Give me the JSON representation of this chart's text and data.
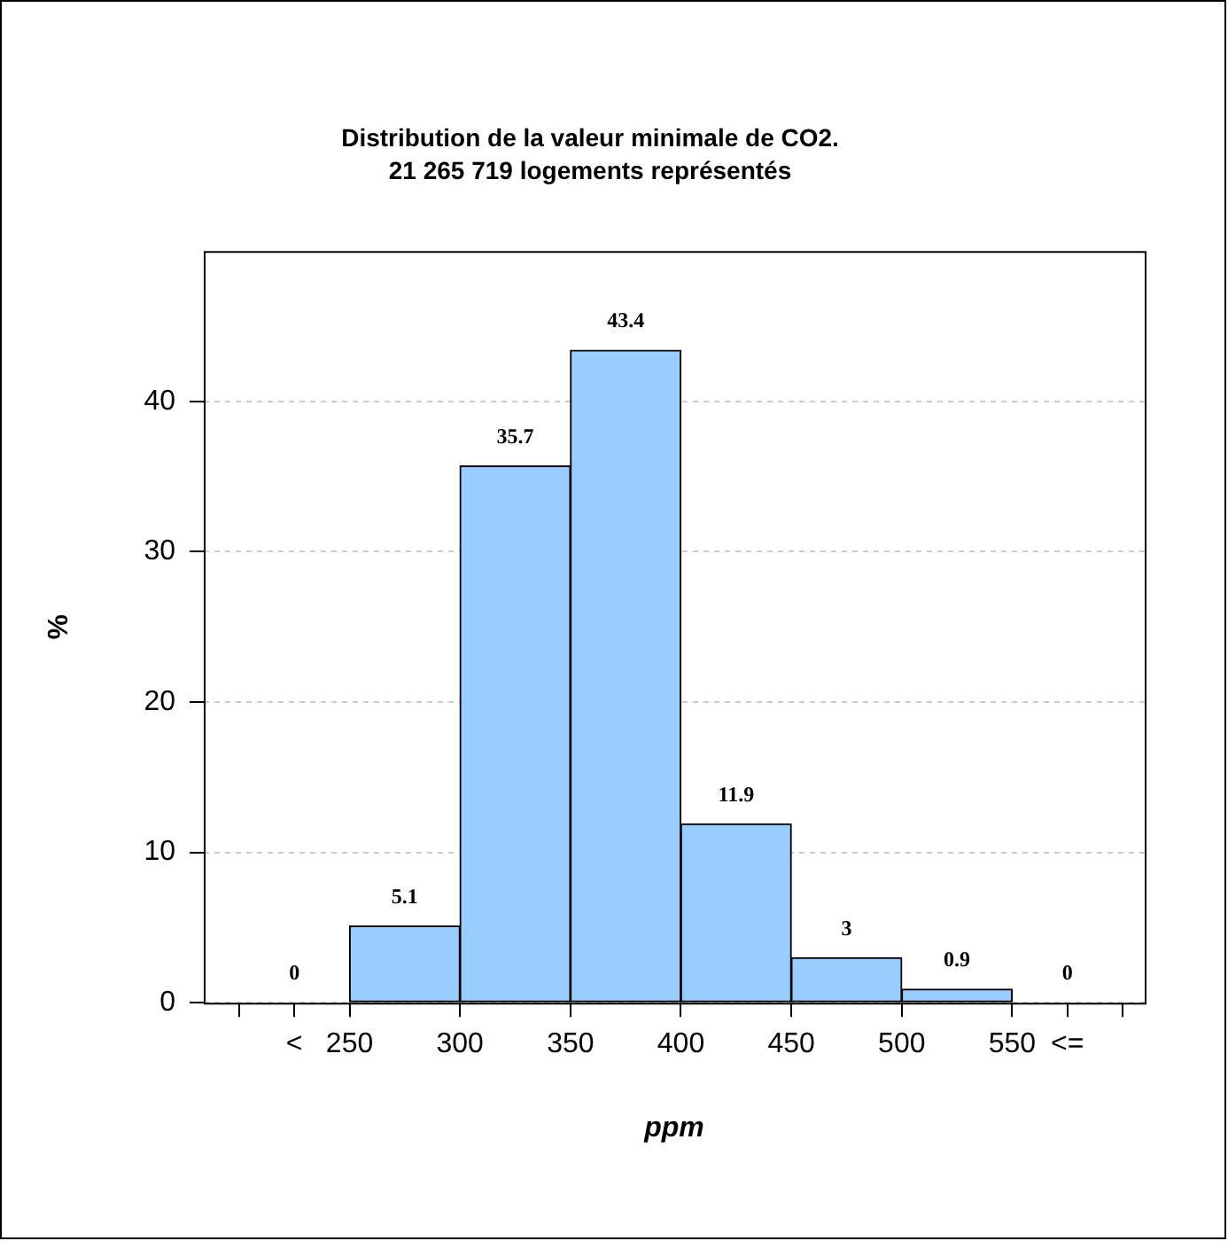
{
  "chart_data": {
    "type": "histogram",
    "title": "Distribution de la valeur minimale de CO2.",
    "subtitle": "21 265 719 logements représentés",
    "xlabel": "ppm",
    "ylabel": "%",
    "bins": [
      200,
      250,
      300,
      350,
      400,
      450,
      500,
      550,
      600
    ],
    "values": [
      0,
      5.1,
      35.7,
      43.4,
      11.9,
      3,
      0.9,
      0
    ],
    "color": "#99ccff",
    "xlim": [
      184,
      610
    ],
    "xticks": [
      {
        "value": 200,
        "label": null
      },
      {
        "value": 225,
        "label": "<"
      },
      250,
      300,
      350,
      400,
      450,
      500,
      550,
      {
        "value": 575,
        "label": "<="
      },
      {
        "value": 600,
        "label": null
      }
    ],
    "ylim": [
      0,
      50
    ],
    "yticks": [
      0,
      10,
      20,
      30,
      40
    ],
    "grid": "y",
    "data_labels": true,
    "legend": false
  }
}
